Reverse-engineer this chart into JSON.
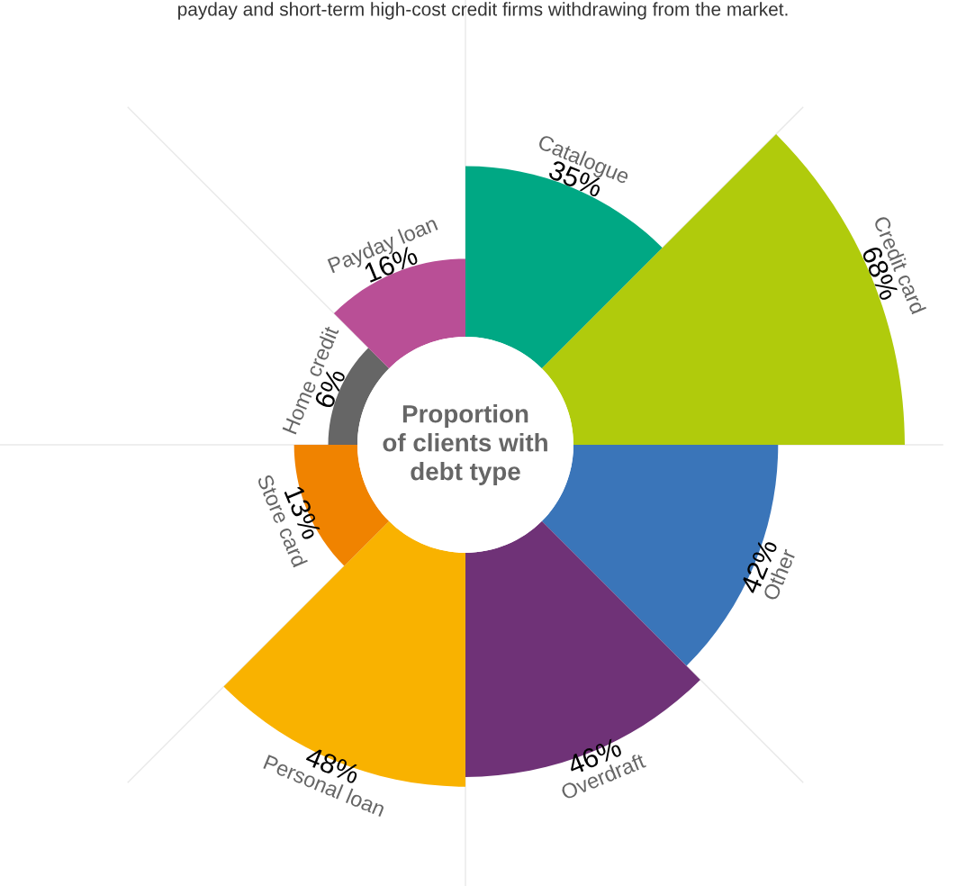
{
  "chart_data": {
    "type": "other",
    "title": "Proportion\nof clients with\ndebt type",
    "subtitle": "payday and short-term high-cost credit firms withdrawing from the market.",
    "categories": [
      "Catalogue",
      "Credit card",
      "Other",
      "Overdraft",
      "Personal loan",
      "Store card",
      "Home credit",
      "Payday loan"
    ],
    "values": [
      35,
      68,
      42,
      46,
      48,
      13,
      6,
      16
    ],
    "value_labels": [
      "35%",
      "68%",
      "42%",
      "46%",
      "48%",
      "13%",
      "6%",
      "16%"
    ],
    "colors": [
      "#00a884",
      "#b0cb0c",
      "#3a75b9",
      "#6f3277",
      "#f9b200",
      "#f08300",
      "#666666",
      "#b94f96"
    ]
  }
}
